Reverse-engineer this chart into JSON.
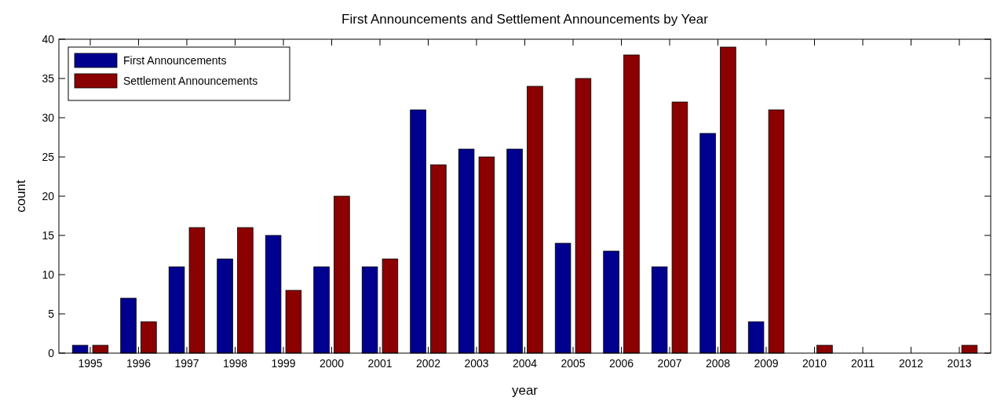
{
  "chart_data": {
    "type": "bar",
    "title": "First Announcements and Settlement Announcements by Year",
    "xlabel": "year",
    "ylabel": "count",
    "categories": [
      "1995",
      "1996",
      "1997",
      "1998",
      "1999",
      "2000",
      "2001",
      "2002",
      "2003",
      "2004",
      "2005",
      "2006",
      "2007",
      "2008",
      "2009",
      "2010",
      "2011",
      "2012",
      "2013"
    ],
    "series": [
      {
        "name": "First Announcements",
        "color": "#00008f",
        "values": [
          1,
          7,
          11,
          12,
          15,
          11,
          11,
          31,
          26,
          26,
          14,
          13,
          11,
          28,
          4,
          0,
          0,
          0,
          0
        ]
      },
      {
        "name": "Settlement Announcements",
        "color": "#8b0000",
        "values": [
          1,
          4,
          16,
          16,
          8,
          20,
          12,
          24,
          25,
          34,
          35,
          38,
          32,
          39,
          31,
          1,
          0,
          0,
          1
        ]
      }
    ],
    "ylim": [
      0,
      40
    ],
    "yticks": [
      0,
      5,
      10,
      15,
      20,
      25,
      30,
      35,
      40
    ],
    "grid": false,
    "legend": "top left"
  }
}
